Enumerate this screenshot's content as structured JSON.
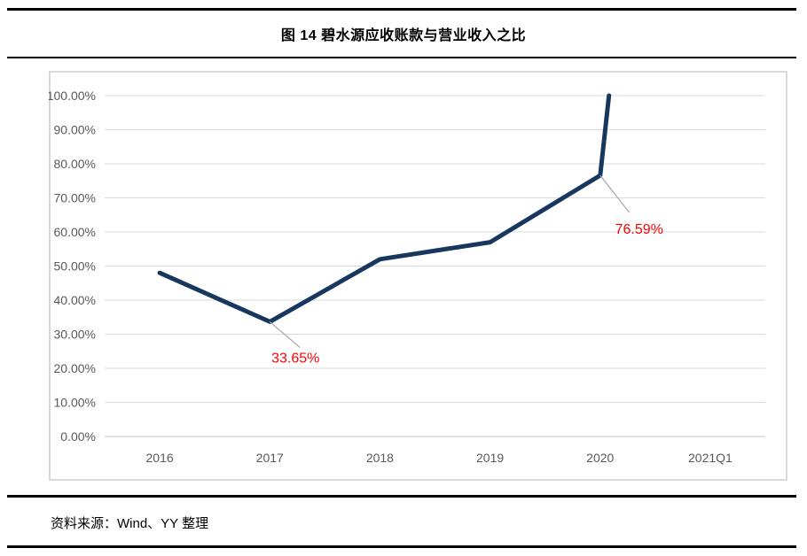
{
  "header": {
    "title": "图 14 碧水源应收账款与营业收入之比"
  },
  "footer": {
    "source": "资料来源：Wind、YY 整理"
  },
  "chart_data": {
    "type": "line",
    "title": "图 14 碧水源应收账款与营业收入之比",
    "categories": [
      "2016",
      "2017",
      "2018",
      "2019",
      "2020",
      "2021Q1"
    ],
    "values": [
      48.0,
      33.65,
      52.0,
      57.0,
      76.59,
      null
    ],
    "unit": "%",
    "ylim": [
      0,
      100
    ],
    "y_ticks": [
      "0.00%",
      "10.00%",
      "20.00%",
      "30.00%",
      "40.00%",
      "50.00%",
      "60.00%",
      "70.00%",
      "80.00%",
      "90.00%",
      "100.00%"
    ],
    "grid": true,
    "legend": "none",
    "annotations": [
      {
        "category": "2017",
        "point_index": 1,
        "label": "33.65%",
        "leader_end_offset": [
          34,
          29
        ],
        "label_offset": [
          29,
          46
        ]
      },
      {
        "category": "2020",
        "point_index": 4,
        "label": "76.59%",
        "leader_end_offset": [
          33,
          42
        ],
        "label_offset": [
          44,
          66
        ]
      }
    ],
    "offscale": {
      "category": "2021Q1",
      "note": "2021Q1 value exceeds axis maximum; line is clipped at top of plot area",
      "exit_fraction_after_previous": 0.08
    },
    "colors": {
      "line": "#17375e",
      "annotation": "#ff0000",
      "grid": "#d9d9d9",
      "axis_line": "#c6c6c6",
      "axis_text": "#595959",
      "leader": "#a6a6a6",
      "frame": "#d9d9d9"
    }
  }
}
